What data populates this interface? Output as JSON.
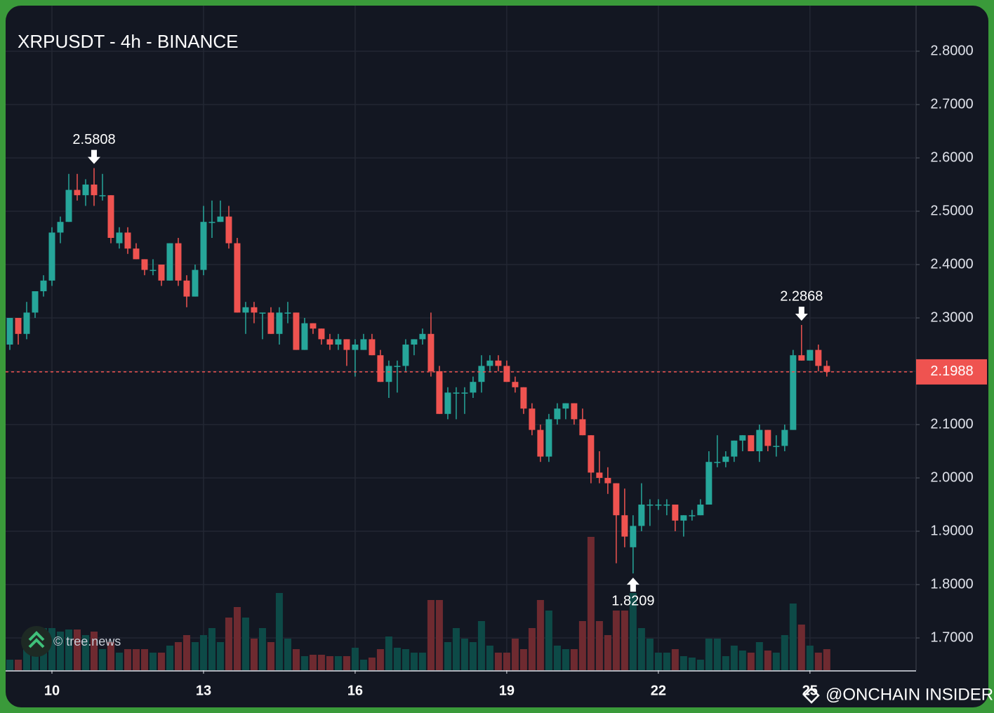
{
  "chart_data": {
    "type": "candlestick",
    "title": "XRPUSDT - 4h - BINANCE",
    "watermark": "© tree.news",
    "credit": "@ONCHAIN INSIDER",
    "up_color": "#26a69a",
    "down_color": "#ef5350",
    "volume_up_color": "#0d4a47",
    "volume_down_color": "#6e2a30",
    "grid": true,
    "xlim": [
      -0.5,
      107.6
    ],
    "xticks": [
      {
        "value": 5,
        "label": "10"
      },
      {
        "value": 23,
        "label": "13"
      },
      {
        "value": 41,
        "label": "16"
      },
      {
        "value": 59,
        "label": "19"
      },
      {
        "value": 77,
        "label": "22"
      },
      {
        "value": 95,
        "label": "25"
      }
    ],
    "ylim": [
      1.6395,
      2.8855
    ],
    "yticks": [
      {
        "value": 1.7,
        "label": "1.7000"
      },
      {
        "value": 1.8,
        "label": "1.8000"
      },
      {
        "value": 1.9,
        "label": "1.9000"
      },
      {
        "value": 2.0,
        "label": "2.0000"
      },
      {
        "value": 2.1,
        "label": "2.1000"
      },
      {
        "value": 2.2,
        "label": "2.2000"
      },
      {
        "value": 2.3,
        "label": "2.3000"
      },
      {
        "value": 2.4,
        "label": "2.4000"
      },
      {
        "value": 2.5,
        "label": "2.5000"
      },
      {
        "value": 2.6,
        "label": "2.6000"
      },
      {
        "value": 2.7,
        "label": "2.7000"
      },
      {
        "value": 2.8,
        "label": "2.8000"
      }
    ],
    "last_price": 2.1988,
    "open": [
      2.25,
      2.3,
      2.27,
      2.31,
      2.35,
      2.37,
      2.46,
      2.48,
      2.54,
      2.53,
      2.55,
      2.53,
      2.53,
      2.44,
      2.46,
      2.43,
      2.41,
      2.39,
      2.4,
      2.37,
      2.44,
      2.37,
      2.34,
      2.39,
      2.48,
      2.48,
      2.49,
      2.44,
      2.31,
      2.32,
      2.31,
      2.31,
      2.27,
      2.31,
      2.31,
      2.24,
      2.29,
      2.28,
      2.26,
      2.25,
      2.26,
      2.24,
      2.24,
      2.26,
      2.23,
      2.18,
      2.21,
      2.21,
      2.25,
      2.26,
      2.27,
      2.2,
      2.12,
      2.16,
      2.16,
      2.16,
      2.18,
      2.21,
      2.22,
      2.21,
      2.18,
      2.17,
      2.13,
      2.09,
      2.04,
      2.11,
      2.13,
      2.14,
      2.11,
      2.08,
      2.01,
      2.0,
      1.99,
      1.93,
      1.87,
      1.91,
      1.95,
      1.95,
      1.95,
      1.95,
      1.92,
      1.93,
      1.93,
      1.95,
      2.03,
      2.03,
      2.04,
      2.07,
      2.08,
      2.05,
      2.09,
      2.06,
      2.06,
      2.09,
      2.23,
      2.22,
      2.24,
      2.21
    ],
    "high": [
      2.3,
      2.3,
      2.33,
      2.35,
      2.38,
      2.47,
      2.49,
      2.57,
      2.57,
      2.56,
      2.5808,
      2.57,
      2.53,
      2.47,
      2.47,
      2.44,
      2.41,
      2.41,
      2.4,
      2.44,
      2.45,
      2.38,
      2.4,
      2.51,
      2.52,
      2.52,
      2.51,
      2.45,
      2.33,
      2.33,
      2.31,
      2.32,
      2.32,
      2.33,
      2.31,
      2.3,
      2.29,
      2.28,
      2.27,
      2.27,
      2.26,
      2.26,
      2.27,
      2.27,
      2.24,
      2.22,
      2.22,
      2.26,
      2.26,
      2.28,
      2.31,
      2.21,
      2.17,
      2.17,
      2.17,
      2.19,
      2.23,
      2.23,
      2.23,
      2.22,
      2.19,
      2.17,
      2.14,
      2.1,
      2.12,
      2.14,
      2.14,
      2.14,
      2.13,
      2.08,
      2.05,
      2.02,
      1.99,
      1.98,
      1.93,
      1.99,
      1.96,
      1.96,
      1.96,
      1.95,
      1.93,
      1.94,
      1.96,
      2.05,
      2.08,
      2.05,
      2.07,
      2.08,
      2.08,
      2.1,
      2.09,
      2.08,
      2.1,
      2.24,
      2.2868,
      2.24,
      2.25,
      2.22
    ],
    "low": [
      2.24,
      2.25,
      2.26,
      2.3,
      2.34,
      2.36,
      2.44,
      2.48,
      2.52,
      2.51,
      2.51,
      2.52,
      2.44,
      2.43,
      2.42,
      2.41,
      2.38,
      2.38,
      2.36,
      2.37,
      2.36,
      2.32,
      2.34,
      2.38,
      2.45,
      2.48,
      2.43,
      2.31,
      2.27,
      2.29,
      2.26,
      2.27,
      2.25,
      2.29,
      2.24,
      2.24,
      2.27,
      2.25,
      2.24,
      2.24,
      2.21,
      2.19,
      2.24,
      2.23,
      2.18,
      2.15,
      2.16,
      2.2,
      2.23,
      2.25,
      2.19,
      2.12,
      2.11,
      2.11,
      2.12,
      2.15,
      2.16,
      2.2,
      2.2,
      2.18,
      2.16,
      2.12,
      2.08,
      2.03,
      2.03,
      2.1,
      2.11,
      2.1,
      2.08,
      1.99,
      1.99,
      1.97,
      1.84,
      1.87,
      1.8209,
      1.9,
      1.91,
      1.94,
      1.93,
      1.9,
      1.89,
      1.92,
      1.93,
      1.95,
      2.02,
      2.02,
      2.03,
      2.05,
      2.05,
      2.03,
      2.05,
      2.04,
      2.05,
      2.09,
      2.22,
      2.22,
      2.2,
      2.19
    ],
    "close": [
      2.3,
      2.27,
      2.31,
      2.35,
      2.37,
      2.46,
      2.48,
      2.54,
      2.53,
      2.55,
      2.53,
      2.53,
      2.45,
      2.46,
      2.43,
      2.41,
      2.39,
      2.39,
      2.37,
      2.44,
      2.37,
      2.34,
      2.39,
      2.48,
      2.48,
      2.49,
      2.44,
      2.31,
      2.32,
      2.31,
      2.31,
      2.27,
      2.31,
      2.31,
      2.24,
      2.29,
      2.28,
      2.26,
      2.25,
      2.26,
      2.24,
      2.25,
      2.26,
      2.23,
      2.18,
      2.21,
      2.21,
      2.25,
      2.26,
      2.27,
      2.2,
      2.12,
      2.16,
      2.16,
      2.16,
      2.18,
      2.21,
      2.22,
      2.21,
      2.18,
      2.17,
      2.13,
      2.09,
      2.04,
      2.11,
      2.13,
      2.14,
      2.11,
      2.08,
      2.01,
      2.0,
      1.99,
      1.93,
      1.89,
      1.91,
      1.95,
      1.95,
      1.95,
      1.95,
      1.92,
      1.93,
      1.93,
      1.95,
      2.03,
      2.03,
      2.04,
      2.07,
      2.08,
      2.05,
      2.09,
      2.06,
      2.06,
      2.09,
      2.23,
      2.22,
      2.24,
      2.21,
      2.1988
    ],
    "volume": [
      15,
      15,
      50,
      40,
      60,
      60,
      55,
      58,
      58,
      50,
      55,
      30,
      40,
      25,
      30,
      30,
      30,
      25,
      25,
      35,
      40,
      50,
      40,
      50,
      60,
      40,
      75,
      90,
      75,
      45,
      60,
      40,
      110,
      45,
      30,
      20,
      22,
      22,
      20,
      20,
      20,
      32,
      15,
      18,
      30,
      48,
      32,
      30,
      25,
      25,
      100,
      100,
      40,
      60,
      45,
      40,
      70,
      35,
      25,
      25,
      45,
      30,
      60,
      100,
      85,
      35,
      30,
      30,
      70,
      190,
      70,
      50,
      85,
      85,
      110,
      60,
      45,
      25,
      25,
      30,
      20,
      18,
      15,
      45,
      45,
      20,
      35,
      28,
      25,
      40,
      28,
      25,
      50,
      95,
      65,
      35,
      25,
      30
    ],
    "annotations": [
      {
        "value": 2.5808,
        "index": 10,
        "position": "above"
      },
      {
        "value": 1.8209,
        "index": 74,
        "position": "below"
      },
      {
        "value": 2.2868,
        "index": 94,
        "position": "above"
      }
    ]
  }
}
